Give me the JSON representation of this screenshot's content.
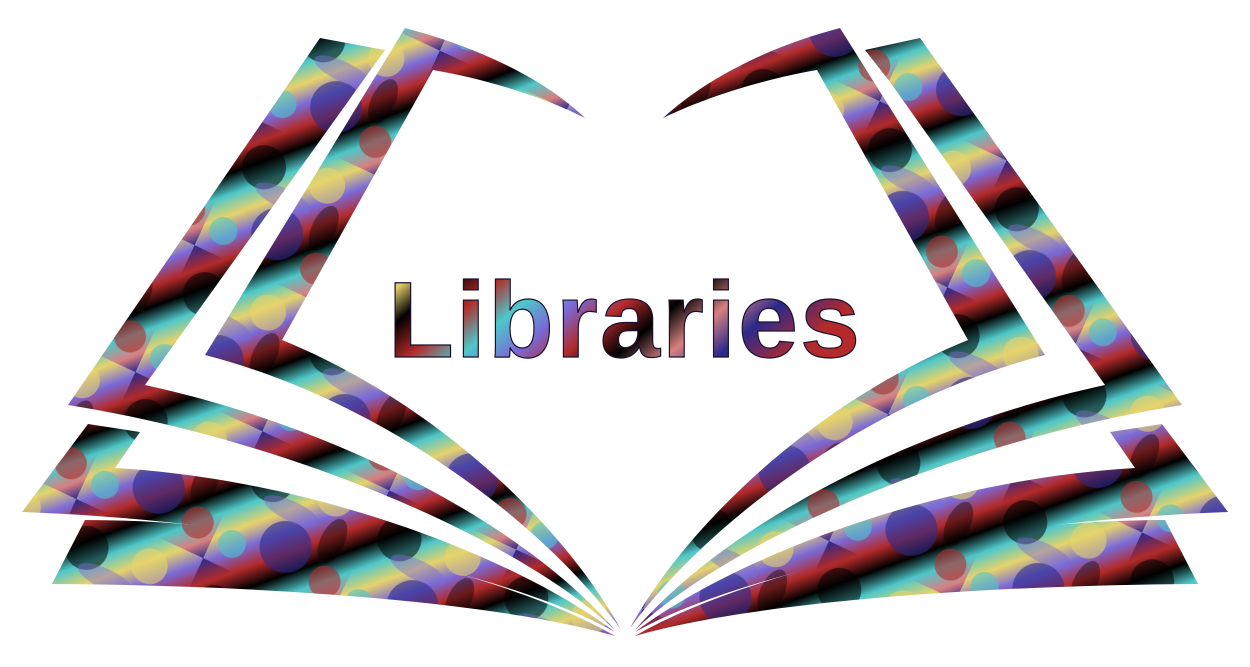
{
  "title": "Libraries",
  "palette": {
    "background": "#ffffff",
    "swirl_colors": [
      "#2a2a8c",
      "#b32a2a",
      "#e6d36b",
      "#4ec7c9",
      "#000000",
      "#7a6ad8",
      "#d98080"
    ]
  },
  "icon": "open-book-icon"
}
